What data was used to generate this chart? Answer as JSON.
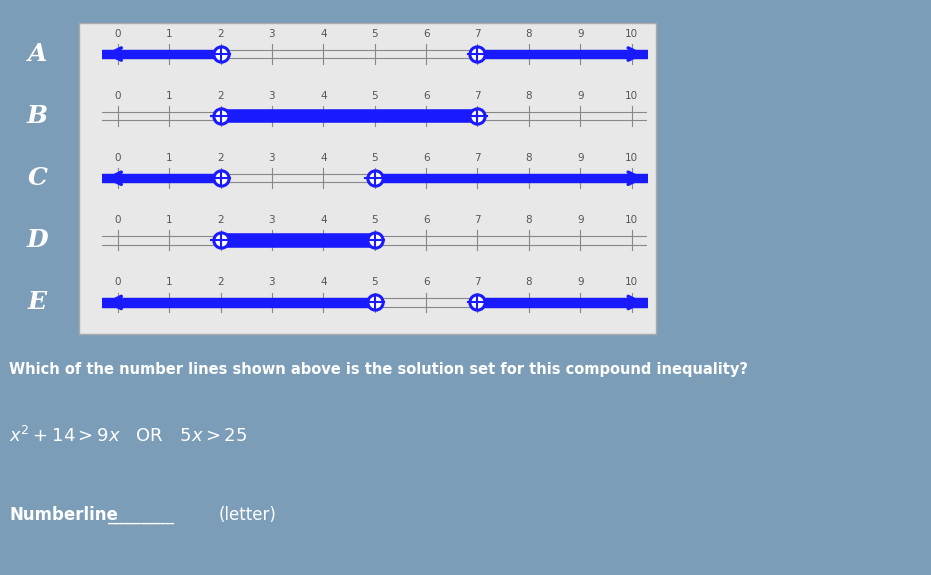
{
  "bg_color": "#7b9db8",
  "panel_color": "#e8e8e8",
  "panel_border": "#cccccc",
  "line_color": "#888888",
  "arrow_color": "#1a1aff",
  "label_color": "#555555",
  "text_color": "#ffffff",
  "row_labels": [
    "A",
    "B",
    "C",
    "D",
    "E"
  ],
  "xmin": 0,
  "xmax": 10,
  "tick_positions": [
    0,
    1,
    2,
    3,
    4,
    5,
    6,
    7,
    8,
    9,
    10
  ],
  "numberlines": [
    {
      "label": "A",
      "circles": [
        {
          "x": 2,
          "open": true
        },
        {
          "x": 7,
          "open": true
        }
      ],
      "arrows": [
        {
          "from": 2,
          "direction": "left"
        },
        {
          "from": 7,
          "direction": "right"
        }
      ],
      "segments": [],
      "show_tick_0": true,
      "show_tick_1": false
    },
    {
      "label": "B",
      "circles": [
        {
          "x": 2,
          "open": true
        },
        {
          "x": 7,
          "open": true
        }
      ],
      "arrows": [],
      "segments": [
        {
          "from": 2,
          "to": 7
        }
      ],
      "show_tick_0": true,
      "show_tick_1": true
    },
    {
      "label": "C",
      "circles": [
        {
          "x": 2,
          "open": true
        },
        {
          "x": 5,
          "open": true
        }
      ],
      "arrows": [
        {
          "from": 2,
          "direction": "left"
        },
        {
          "from": 5,
          "direction": "right"
        }
      ],
      "segments": [],
      "show_tick_0": true,
      "show_tick_1": false
    },
    {
      "label": "D",
      "circles": [
        {
          "x": 2,
          "open": true
        },
        {
          "x": 5,
          "open": true
        }
      ],
      "arrows": [],
      "segments": [
        {
          "from": 2,
          "to": 5
        }
      ],
      "show_tick_0": true,
      "show_tick_1": true
    },
    {
      "label": "E",
      "circles": [
        {
          "x": 5,
          "open": true
        },
        {
          "x": 7,
          "open": true
        }
      ],
      "arrows": [
        {
          "from": 5,
          "direction": "left"
        },
        {
          "from": 7,
          "direction": "right"
        }
      ],
      "segments": [],
      "show_tick_0": true,
      "show_tick_1": true
    }
  ],
  "title": "Which of the number lines shown above is the solution set for this compound inequality?",
  "inequality": "x^2 + 14 > 9x   OR   5x > 25",
  "answer_prefix": "Numberline",
  "answer_suffix": "(letter)"
}
